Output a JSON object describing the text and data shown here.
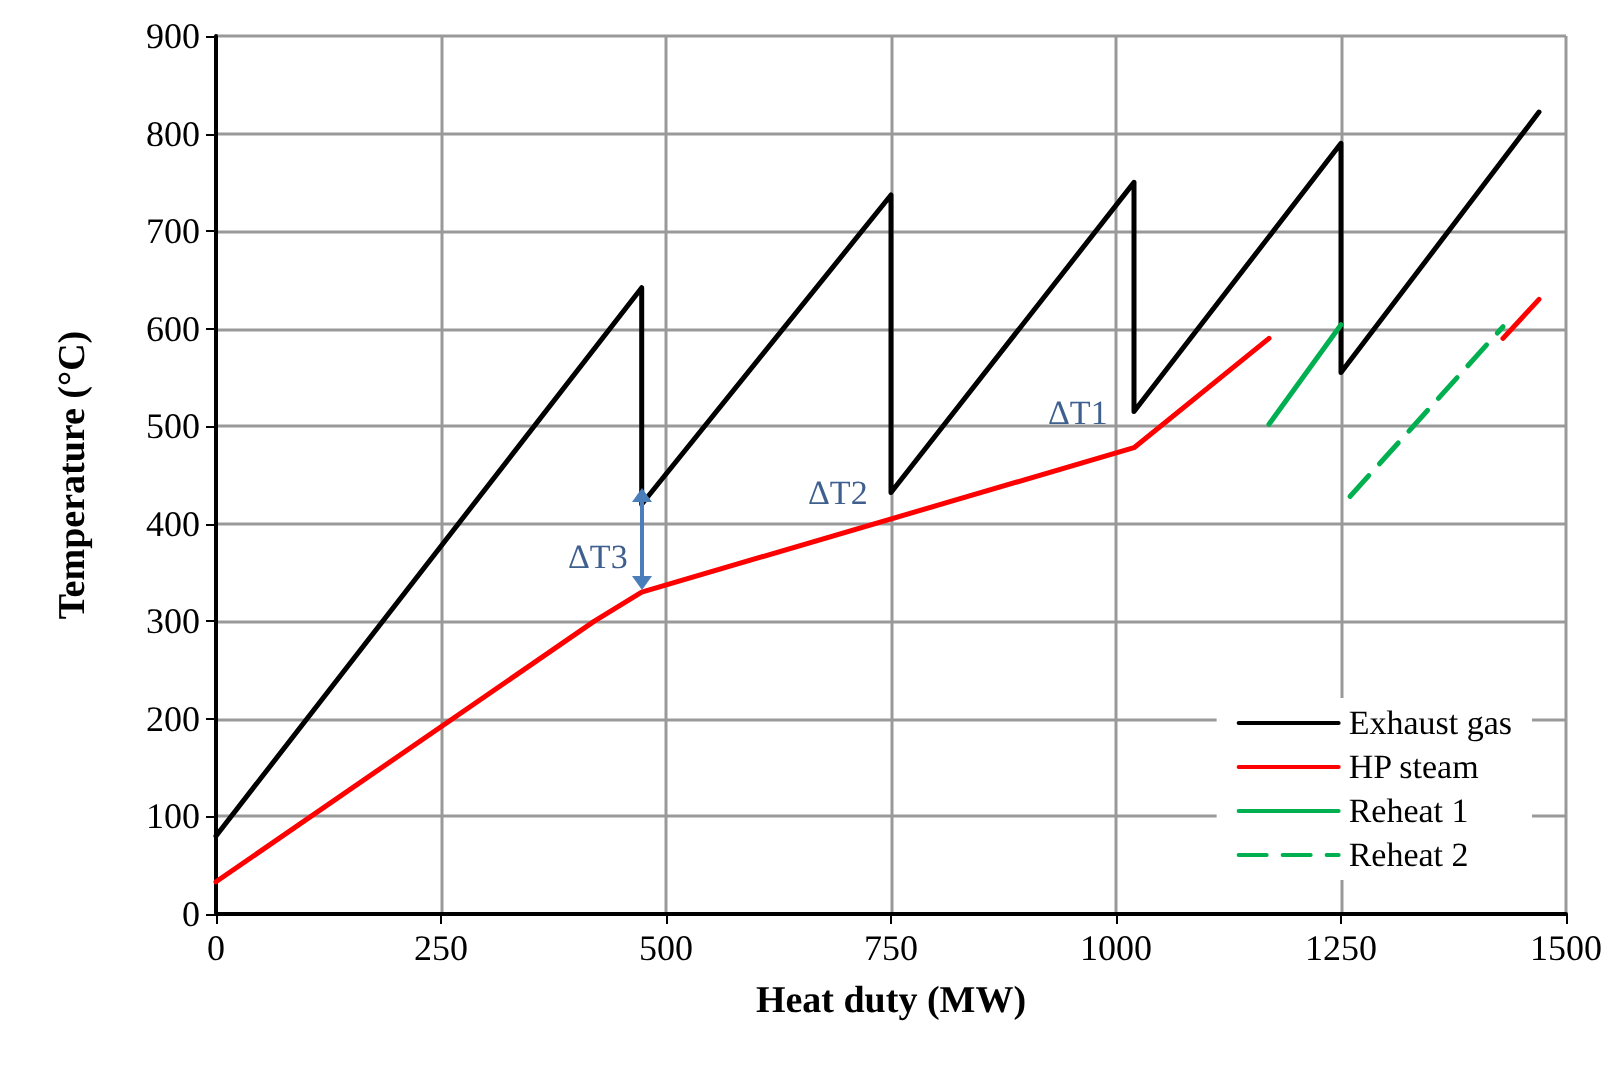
{
  "chart_data": {
    "type": "line",
    "xlabel": "Heat duty (MW)",
    "ylabel": "Temperature (°C)",
    "xlim": [
      0,
      1500
    ],
    "xticks": [
      0,
      250,
      500,
      750,
      1000,
      1250,
      1500
    ],
    "ylim": [
      0,
      900
    ],
    "yticks": [
      0,
      100,
      200,
      300,
      400,
      500,
      600,
      700,
      800,
      900
    ],
    "grid": true,
    "legend": "bottom right",
    "marker": "none",
    "series": [
      {
        "name": "Exhaust gas",
        "color": "#000000",
        "line_style": "solid",
        "x": [
          0,
          473,
          473,
          750,
          750,
          1020,
          1020,
          1250,
          1250,
          1470
        ],
        "values": [
          80,
          642,
          420,
          737,
          432,
          750,
          515,
          790,
          555,
          822
        ]
      },
      {
        "name": "HP steam",
        "color": "#ff0000",
        "line_style": "solid",
        "x": [
          0,
          420,
          473,
          1020,
          1170,
          1300,
          1430,
          1470
        ],
        "values": [
          33,
          300,
          330,
          478,
          590,
          null,
          590,
          630
        ]
      },
      {
        "name": "Reheat 1",
        "color": "#00b050",
        "line_style": "solid",
        "x": [
          1170,
          1250
        ],
        "values": [
          502,
          604
        ]
      },
      {
        "name": "Reheat 2",
        "color": "#00b050",
        "line_style": "dashed",
        "x": [
          1260,
          1430
        ],
        "values": [
          428,
          602
        ]
      }
    ],
    "annotations": [
      "ΔT3",
      "ΔT2",
      "ΔT1"
    ]
  }
}
